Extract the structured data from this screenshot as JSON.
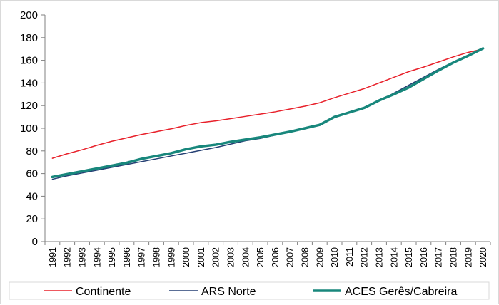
{
  "chart_data": {
    "type": "line",
    "title": "",
    "xlabel": "",
    "ylabel": "",
    "ylim": [
      0,
      200
    ],
    "y_ticks": [
      0,
      20,
      40,
      60,
      80,
      100,
      120,
      140,
      160,
      180,
      200
    ],
    "grid": false,
    "legend_position": "bottom",
    "x": [
      "1991",
      "1992",
      "1993",
      "1994",
      "1995",
      "1996",
      "1997",
      "1998",
      "1999",
      "2000",
      "2001",
      "2002",
      "2003",
      "2004",
      "2005",
      "2006",
      "2007",
      "2008",
      "2009",
      "2010",
      "2011",
      "2012",
      "2013",
      "2014",
      "2015",
      "2016",
      "2017",
      "2018",
      "2019",
      "2020"
    ],
    "series": [
      {
        "name": "Continente",
        "color": "#e8202a",
        "values": [
          73.5,
          77.5,
          81,
          85,
          88.5,
          91.5,
          94.5,
          97,
          99.5,
          102.5,
          105,
          106.5,
          108.5,
          110.5,
          112.5,
          114.5,
          117,
          119.5,
          122.5,
          127,
          131,
          135,
          140,
          145,
          150,
          154,
          158.5,
          163,
          167,
          170
        ]
      },
      {
        "name": "ARS Norte",
        "color": "#243f73",
        "values": [
          55,
          58,
          60.5,
          63,
          65.5,
          68,
          70.5,
          73,
          75.5,
          78,
          80.5,
          83,
          86,
          89,
          91,
          94,
          97,
          100,
          103,
          109.5,
          114,
          118,
          124,
          131,
          138,
          145,
          152,
          158.5,
          164.5,
          170
        ]
      },
      {
        "name": "ACES Gerês/Cabreira",
        "color": "#18877c",
        "values": [
          57,
          59.5,
          62,
          64.5,
          67,
          69.5,
          73,
          75.5,
          78,
          81.5,
          84,
          85.5,
          88,
          90,
          92,
          94.5,
          97,
          100,
          103,
          110,
          114,
          118,
          124.5,
          130,
          136,
          143.5,
          151,
          158,
          164,
          170.5
        ]
      }
    ]
  }
}
